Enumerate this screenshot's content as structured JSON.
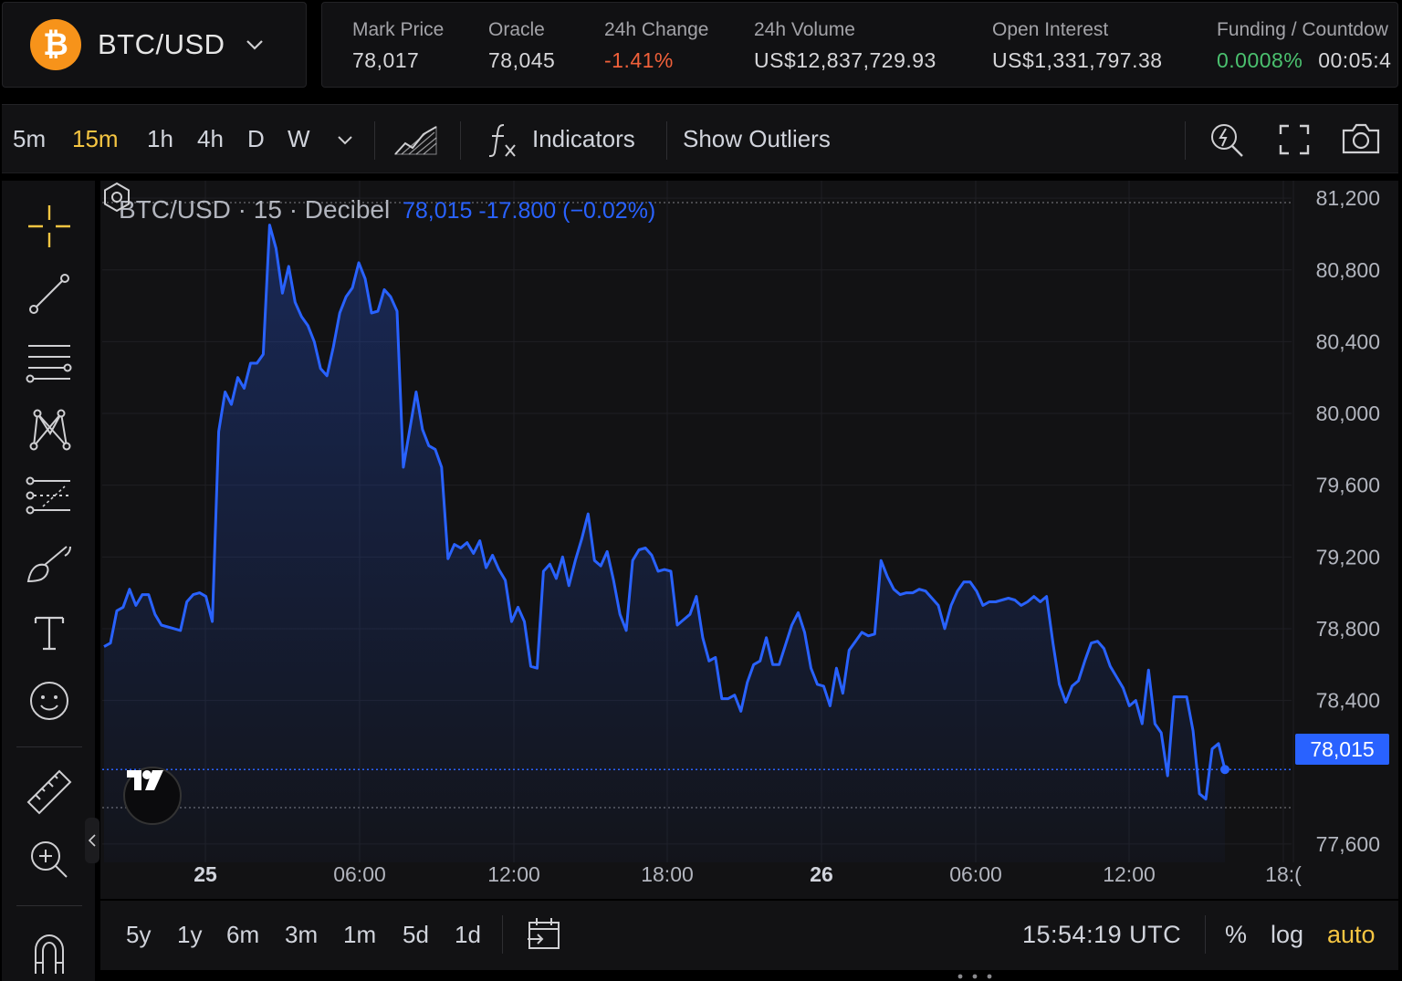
{
  "header": {
    "pair": "BTC/USD",
    "logo_glyph": "₿",
    "stats": [
      {
        "label": "Mark Price",
        "value": "78,017"
      },
      {
        "label": "Oracle",
        "value": "78,045"
      },
      {
        "label": "24h Change",
        "value": "-1.41%"
      },
      {
        "label": "24h Volume",
        "value": "US$12,837,729.93"
      },
      {
        "label": "Open Interest",
        "value": "US$1,331,797.38"
      },
      {
        "label": "Funding / Countdow",
        "value": "0.0008%",
        "value2": "00:05:4"
      }
    ]
  },
  "toolbar": {
    "timeframes": [
      "5m",
      "15m",
      "1h",
      "4h",
      "D",
      "W"
    ],
    "active_timeframe": "15m",
    "indicators_label": "Indicators",
    "outliers_label": "Show Outliers"
  },
  "chart": {
    "legend_symbol": "BTC/USD · 15 · Decibel",
    "legend_values": "78,015  -17.800 (−0.02%)",
    "price_tag": "78,015",
    "y_ticks": [
      "81,200",
      "80,800",
      "80,400",
      "80,000",
      "79,600",
      "79,200",
      "78,800",
      "78,400",
      "77,600"
    ],
    "x_ticks": [
      "25",
      "06:00",
      "12:00",
      "18:00",
      "26",
      "06:00",
      "12:00",
      "18:("
    ],
    "line_color": "#2962ff",
    "y_range": [
      77500,
      81300
    ]
  },
  "chart_data": {
    "type": "area",
    "series": [
      {
        "name": "BTC/USD · 15 · Decibel",
        "values": [
          78700,
          78720,
          78900,
          78920,
          79020,
          78930,
          78990,
          78990,
          78880,
          78820,
          78810,
          78800,
          78790,
          78950,
          78990,
          79000,
          78980,
          78840,
          79900,
          80120,
          80050,
          80200,
          80140,
          80280,
          80280,
          80330,
          81050,
          80920,
          80670,
          80820,
          80620,
          80540,
          80490,
          80400,
          80250,
          80210,
          80370,
          80560,
          80650,
          80700,
          80840,
          80750,
          80560,
          80570,
          80690,
          80650,
          80570,
          79700,
          79910,
          80120,
          79910,
          79820,
          79800,
          79700,
          79190,
          79270,
          79250,
          79280,
          79220,
          79290,
          79140,
          79210,
          79130,
          79070,
          78840,
          78920,
          78840,
          78590,
          78580,
          79120,
          79160,
          79080,
          79200,
          79040,
          79180,
          79300,
          79440,
          79180,
          79150,
          79230,
          79070,
          78880,
          78790,
          79180,
          79240,
          79250,
          79210,
          79120,
          79130,
          79120,
          78820,
          78850,
          78880,
          78980,
          78750,
          78620,
          78640,
          78410,
          78410,
          78430,
          78340,
          78500,
          78600,
          78620,
          78750,
          78600,
          78600,
          78710,
          78820,
          78890,
          78780,
          78580,
          78490,
          78480,
          78370,
          78580,
          78440,
          78680,
          78730,
          78780,
          78760,
          78770,
          79180,
          79090,
          79020,
          78990,
          79000,
          79000,
          79020,
          79010,
          78970,
          78930,
          78800,
          78930,
          79010,
          79060,
          79060,
          79010,
          78930,
          78950,
          78950,
          78960,
          78970,
          78960,
          78930,
          78950,
          78980,
          78950,
          78980,
          78720,
          78490,
          78390,
          78480,
          78510,
          78620,
          78720,
          78730,
          78690,
          78590,
          78530,
          78470,
          78370,
          78400,
          78270,
          78570,
          78270,
          78220,
          77980,
          78420,
          78420,
          78420,
          78230,
          77880,
          77850,
          78130,
          78160,
          78015
        ]
      }
    ],
    "x_labels": [
      "25",
      "06:00",
      "12:00",
      "18:00",
      "26",
      "06:00",
      "12:00",
      "18:("
    ],
    "ylim": [
      77500,
      81300
    ],
    "y_ticks": [
      77600,
      78400,
      78800,
      79200,
      79600,
      80000,
      80400,
      80800,
      81200
    ],
    "last_value": 78015,
    "line_color": "#2962ff"
  },
  "bottombar": {
    "ranges": [
      "5y",
      "1y",
      "6m",
      "3m",
      "1m",
      "5d",
      "1d"
    ],
    "clock": "15:54:19 UTC",
    "percent_label": "%",
    "log_label": "log",
    "auto_label": "auto"
  },
  "icons": {
    "crosshair": "crosshair-icon",
    "trendline": "trendline-icon",
    "fib": "fib-retracement-icon",
    "pattern": "pattern-icon",
    "forecast": "forecast-icon",
    "brush": "brush-icon",
    "text": "text-icon",
    "emoji": "emoji-icon",
    "ruler": "ruler-icon",
    "zoom": "zoom-in-icon",
    "magnet": "magnet-icon"
  }
}
